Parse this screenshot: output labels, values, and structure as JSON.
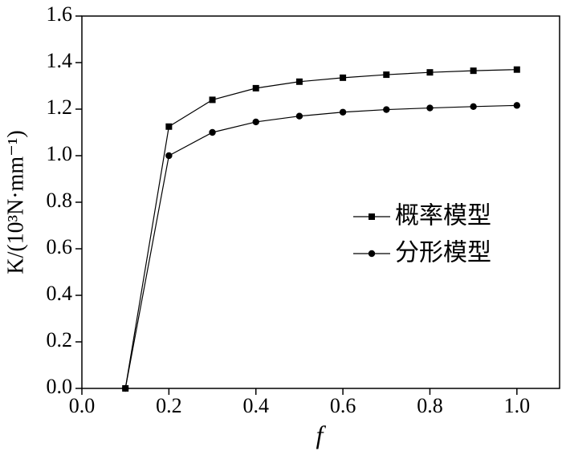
{
  "chart_data": {
    "type": "line",
    "x_label": "f",
    "y_label": "K/(10³N·mm⁻¹)",
    "x": [
      0.1,
      0.2,
      0.3,
      0.4,
      0.5,
      0.6,
      0.7,
      0.8,
      0.9,
      1.0
    ],
    "series": [
      {
        "name": "概率模型",
        "color": "#000000",
        "marker": "square",
        "values": [
          0,
          1.125,
          1.24,
          1.29,
          1.318,
          1.335,
          1.348,
          1.358,
          1.365,
          1.37
        ]
      },
      {
        "name": "分形模型",
        "color": "#000000",
        "marker": "circle",
        "values": [
          0,
          1.0,
          1.1,
          1.145,
          1.17,
          1.187,
          1.198,
          1.205,
          1.211,
          1.216
        ]
      }
    ],
    "xlim": [
      0,
      1.1
    ],
    "xticks": [
      {
        "value": 0,
        "label": "0.0"
      },
      0.2,
      0.4,
      0.6,
      0.8,
      {
        "value": 1,
        "label": "1.0"
      }
    ],
    "ylim": [
      0,
      1.6
    ],
    "yticks": [
      {
        "value": 0,
        "label": "0.0"
      },
      0.2,
      0.4,
      0.6,
      0.8,
      {
        "value": 1,
        "label": "1.0"
      },
      1.2,
      1.4,
      1.6
    ],
    "legend": "right",
    "grid": false
  }
}
